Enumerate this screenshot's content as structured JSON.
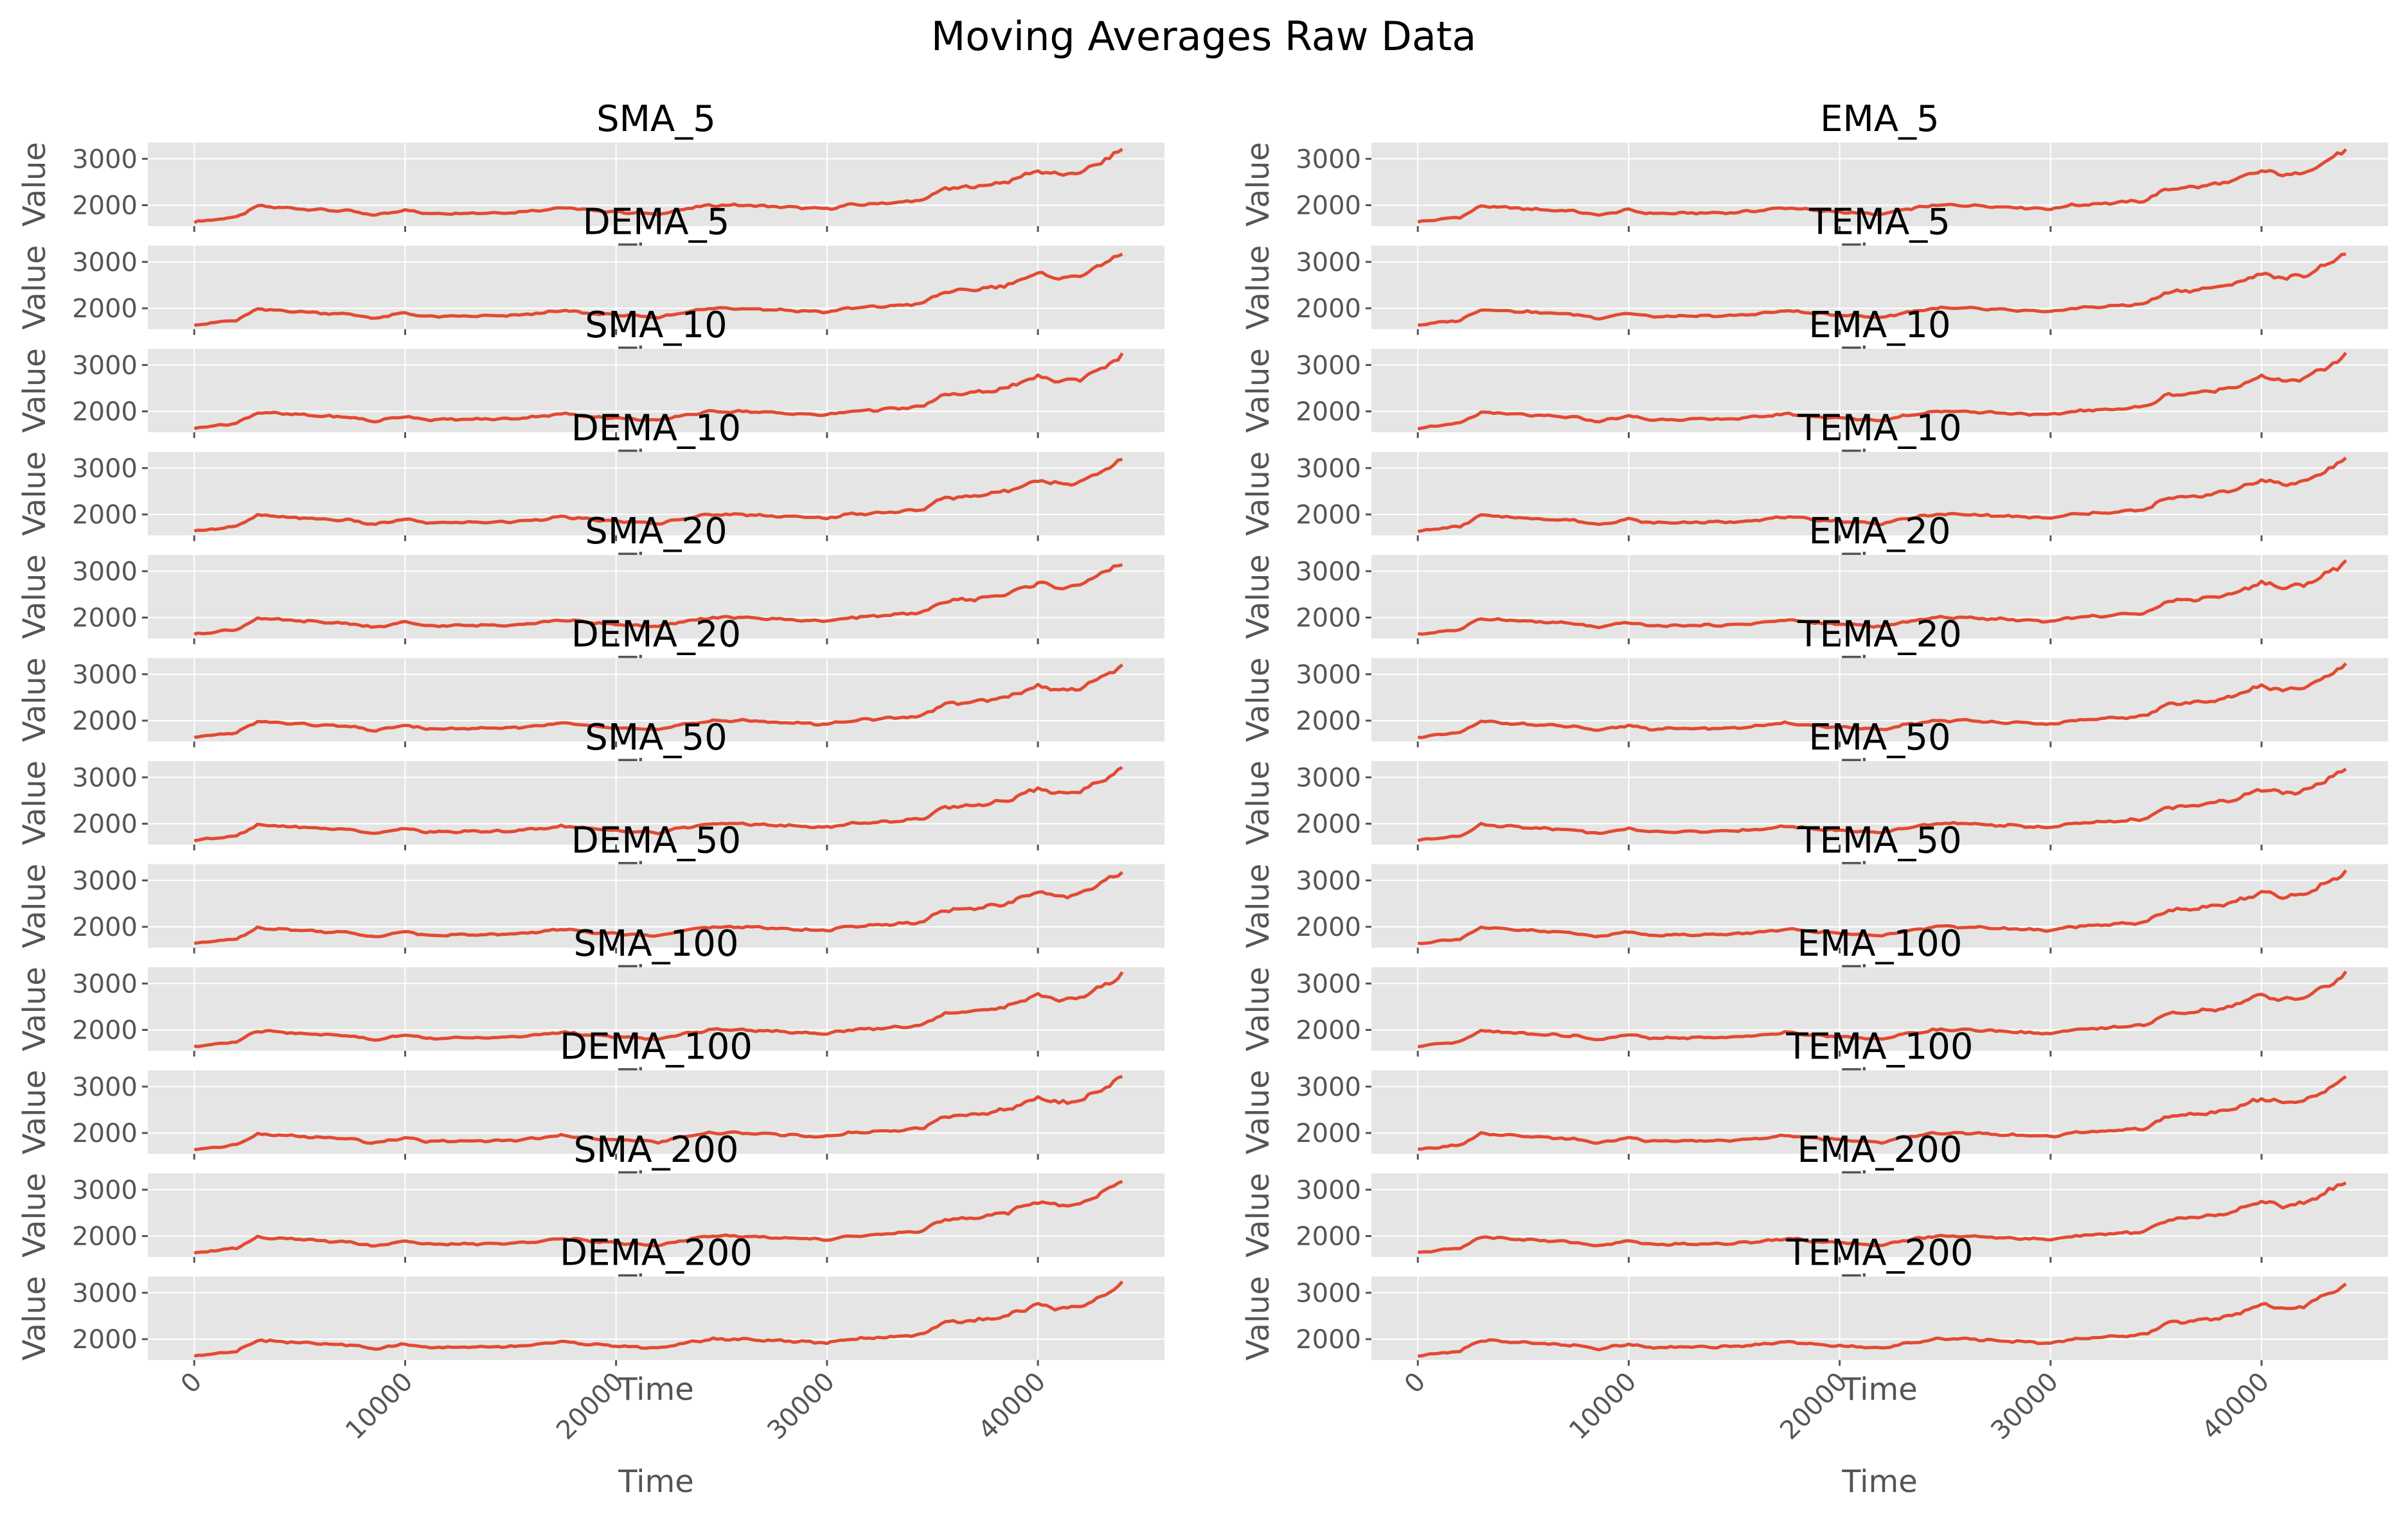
{
  "chart_data": {
    "type": "line",
    "title": "Moving Averages Raw Data",
    "layout": "12 rows x 2 columns of line subplots",
    "xlabel": "Time",
    "ylabel": "Value",
    "xlim": [
      -2200,
      46000
    ],
    "ylim": [
      1550,
      3350
    ],
    "xticks": [
      0,
      10000,
      20000,
      30000,
      40000
    ],
    "yticks": [
      2000,
      3000
    ],
    "grid": true,
    "line_color": "#e24a33",
    "background_color": "#e5e5e5",
    "series_shape": {
      "x": [
        0,
        1500,
        2000,
        3000,
        4500,
        6000,
        7500,
        8500,
        10000,
        11000,
        13000,
        15000,
        16500,
        17500,
        19000,
        21000,
        22000,
        23000,
        24500,
        26000,
        28000,
        30000,
        31000,
        33000,
        34500,
        35500,
        37000,
        38500,
        40000,
        41000,
        42000,
        43500,
        44000
      ],
      "y": [
        1640,
        1720,
        1740,
        1980,
        1940,
        1900,
        1870,
        1780,
        1900,
        1820,
        1830,
        1840,
        1900,
        1950,
        1880,
        1830,
        1800,
        1900,
        2000,
        2000,
        1960,
        1920,
        2000,
        2050,
        2100,
        2350,
        2400,
        2500,
        2750,
        2650,
        2700,
        3050,
        3200
      ]
    },
    "panels": [
      {
        "name": "SMA_5"
      },
      {
        "name": "EMA_5"
      },
      {
        "name": "DEMA_5"
      },
      {
        "name": "TEMA_5"
      },
      {
        "name": "SMA_10"
      },
      {
        "name": "EMA_10"
      },
      {
        "name": "DEMA_10"
      },
      {
        "name": "TEMA_10"
      },
      {
        "name": "SMA_20"
      },
      {
        "name": "EMA_20"
      },
      {
        "name": "DEMA_20"
      },
      {
        "name": "TEMA_20"
      },
      {
        "name": "SMA_50"
      },
      {
        "name": "EMA_50"
      },
      {
        "name": "DEMA_50"
      },
      {
        "name": "TEMA_50"
      },
      {
        "name": "SMA_100"
      },
      {
        "name": "EMA_100"
      },
      {
        "name": "DEMA_100"
      },
      {
        "name": "TEMA_100"
      },
      {
        "name": "SMA_200"
      },
      {
        "name": "EMA_200"
      },
      {
        "name": "DEMA_200"
      },
      {
        "name": "TEMA_200"
      }
    ]
  }
}
